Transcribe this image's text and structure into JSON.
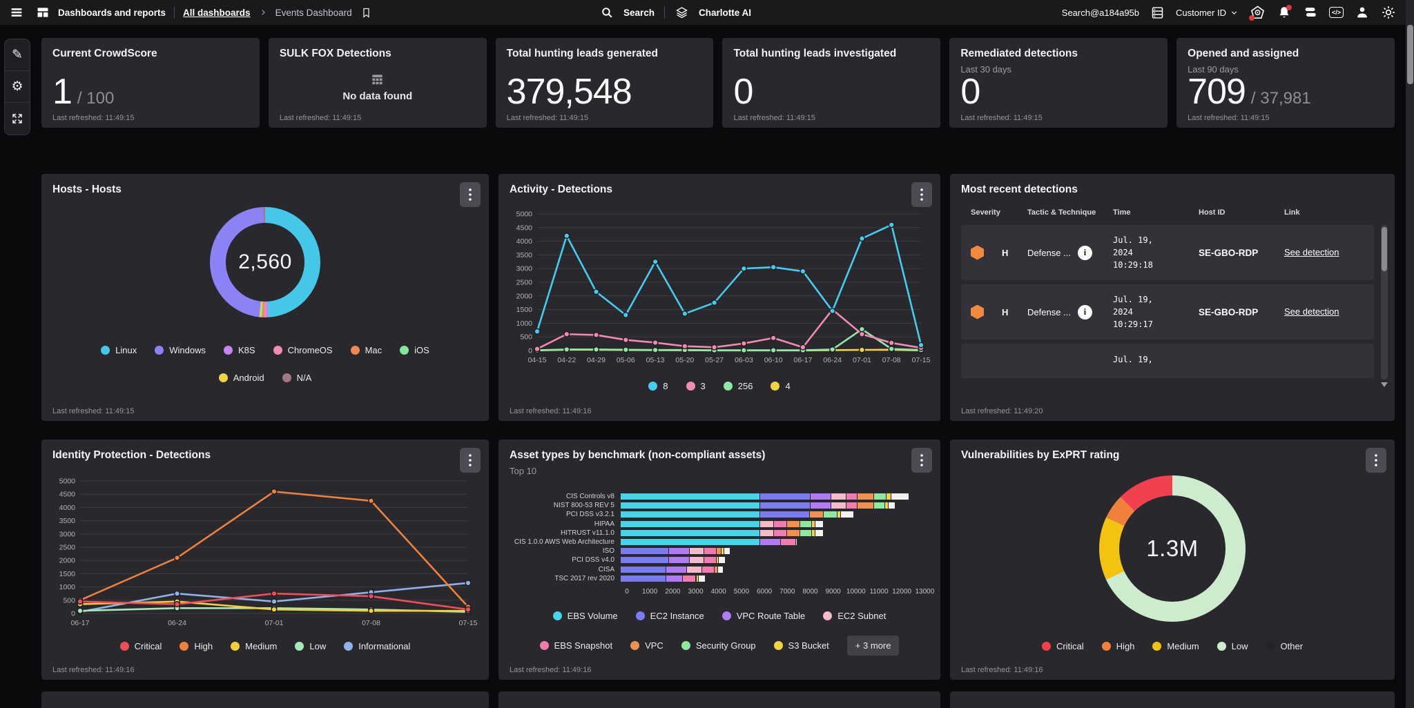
{
  "icons": {
    "pencil": "✎",
    "gear": "⚙",
    "info": "i",
    "code_glyph": "</>",
    "severity_letter": "H"
  },
  "topbar": {
    "nav_title": "Dashboards and reports",
    "breadcrumb_parent": "All dashboards",
    "breadcrumb_current": "Events Dashboard",
    "search_label": "Search",
    "charlotte_label": "Charlotte AI",
    "account_label": "Search@a184a95b",
    "customer_label": "Customer ID"
  },
  "stat_cards": [
    {
      "title": "Current CrowdScore",
      "value": "1",
      "suffix": "/ 100",
      "refreshed": "Last refreshed: 11:49:15"
    },
    {
      "title": "SULK FOX Detections",
      "empty_text": "No data found",
      "refreshed": "Last refreshed: 11:49:15"
    },
    {
      "title": "Total hunting leads generated",
      "value": "379,548",
      "refreshed": "Last refreshed: 11:49:15"
    },
    {
      "title": "Total hunting leads investigated",
      "value": "0",
      "refreshed": "Last refreshed: 11:49:15"
    },
    {
      "title": "Remediated detections",
      "subtitle": "Last 30 days",
      "value": "0",
      "refreshed": "Last refreshed: 11:49:15"
    },
    {
      "title": "Opened and assigned",
      "subtitle": "Last 90 days",
      "value": "709",
      "suffix": "/ 37,981",
      "refreshed": "Last refreshed: 11:49:15"
    }
  ],
  "hosts": {
    "title": "Hosts - Hosts",
    "center_value": "2,560",
    "refreshed": "Last refreshed: 11:49:15",
    "chart_data": {
      "type": "donut",
      "total": "2,560",
      "segments": [
        {
          "label": "Linux",
          "color": "#45c8e8",
          "pct": 49.0
        },
        {
          "label": "K8S",
          "color": "#c584f0",
          "pct": 0.8
        },
        {
          "label": "ChromeOS",
          "color": "#f08cb8",
          "pct": 0.4
        },
        {
          "label": "Mac",
          "color": "#f0884f",
          "pct": 0.7
        },
        {
          "label": "iOS",
          "color": "#7fe89c",
          "pct": 0.4
        },
        {
          "label": "Android",
          "color": "#f0d447",
          "pct": 0.4
        },
        {
          "label": "Windows",
          "color": "#8b82f5",
          "pct": 47.8
        },
        {
          "label": "N/A",
          "color": "#a5787f",
          "pct": 0.5
        }
      ],
      "legend_row1": [
        {
          "label": "Linux",
          "color": "#45c8e8"
        },
        {
          "label": "Windows",
          "color": "#8b82f5"
        },
        {
          "label": "K8S",
          "color": "#c584f0"
        },
        {
          "label": "ChromeOS",
          "color": "#f08cb8"
        },
        {
          "label": "Mac",
          "color": "#f0884f"
        },
        {
          "label": "iOS",
          "color": "#7fe89c"
        }
      ],
      "legend_row2": [
        {
          "label": "Android",
          "color": "#f0d447"
        },
        {
          "label": "N/A",
          "color": "#a5787f"
        }
      ]
    }
  },
  "activity": {
    "title": "Activity - Detections",
    "refreshed": "Last refreshed: 11:49:16",
    "chart_data": {
      "type": "line",
      "x": [
        "04-15",
        "04-22",
        "04-29",
        "05-06",
        "05-13",
        "05-20",
        "05-27",
        "06-03",
        "06-10",
        "06-17",
        "06-24",
        "07-01",
        "07-08",
        "07-15"
      ],
      "ylim": [
        0,
        5000
      ],
      "ystep": 500,
      "series": [
        {
          "name": "8",
          "color": "#45ccf0",
          "values": [
            700,
            4200,
            2150,
            1300,
            3250,
            1350,
            1750,
            3000,
            3050,
            2900,
            1450,
            4100,
            4600,
            200
          ]
        },
        {
          "name": "3",
          "color": "#f28ab4",
          "values": [
            60,
            600,
            570,
            390,
            290,
            160,
            120,
            260,
            460,
            120,
            1500,
            600,
            280,
            100
          ]
        },
        {
          "name": "256",
          "color": "#8fe8a8",
          "values": [
            10,
            40,
            40,
            30,
            20,
            20,
            10,
            10,
            10,
            10,
            40,
            780,
            60,
            20
          ]
        },
        {
          "name": "4",
          "color": "#f2d442",
          "values": [
            5,
            30,
            30,
            20,
            15,
            10,
            5,
            5,
            5,
            5,
            15,
            25,
            30,
            5
          ]
        }
      ]
    }
  },
  "detections": {
    "title": "Most recent detections",
    "columns": [
      "Severity",
      "Tactic & Technique",
      "Time",
      "Host ID",
      "Link"
    ],
    "rows": [
      {
        "severity": "H",
        "tactic": "Defense ...",
        "time_lines": [
          "Jul. 19,",
          "2024",
          "10:29:18"
        ],
        "host": "SE-GBO-RDP",
        "link": "See detection"
      },
      {
        "severity": "H",
        "tactic": "Defense ...",
        "time_lines": [
          "Jul. 19,",
          "2024",
          "10:29:17"
        ],
        "host": "SE-GBO-RDP",
        "link": "See detection"
      },
      {
        "severity": "",
        "tactic": "",
        "time_lines": [
          "Jul. 19,"
        ],
        "host": "",
        "link": "",
        "partial": true
      }
    ],
    "refreshed": "Last refreshed: 11:49:20"
  },
  "identity": {
    "title": "Identity Protection - Detections",
    "refreshed": "Last refreshed: 11:49:16",
    "chart_data": {
      "type": "line",
      "x": [
        "06-17",
        "06-24",
        "07-01",
        "07-08",
        "07-15"
      ],
      "ylim": [
        0,
        5000
      ],
      "ystep": 500,
      "series": [
        {
          "name": "Critical",
          "color": "#f24e58",
          "values": [
            450,
            350,
            750,
            650,
            150
          ]
        },
        {
          "name": "High",
          "color": "#f0813c",
          "values": [
            500,
            2100,
            4600,
            4250,
            250
          ]
        },
        {
          "name": "Medium",
          "color": "#f2ce3a",
          "values": [
            350,
            450,
            150,
            100,
            100
          ]
        },
        {
          "name": "Low",
          "color": "#a8e8b8",
          "values": [
            100,
            200,
            200,
            150,
            60
          ]
        },
        {
          "name": "Informational",
          "color": "#8fb2e8",
          "values": [
            60,
            750,
            450,
            800,
            1150
          ]
        }
      ]
    }
  },
  "assets": {
    "title": "Asset types by benchmark (non-compliant assets)",
    "subtitle": "Top 10",
    "more_label": "+ 3 more",
    "refreshed": "Last refreshed: 11:49:16",
    "chart_data": {
      "type": "stacked-bar-horizontal",
      "categories": [
        "CIS Controls v8",
        "NIST 800-53 REV 5",
        "PCI DSS v3.2.1",
        "HIPAA",
        "HITRUST v11.1.0",
        "CIS 1.0.0 AWS Web Architecture",
        "ISO",
        "PCI DSS v4.0",
        "CISA",
        "TSC 2017 rev 2020"
      ],
      "xlim": [
        0,
        13000
      ],
      "xstep": 1000,
      "series": [
        {
          "name": "EBS Volume",
          "color": "#45d4e8",
          "values": [
            6100,
            6100,
            6100,
            6100,
            6100,
            6100,
            0,
            0,
            0,
            0
          ]
        },
        {
          "name": "EC2 Instance",
          "color": "#7b7bf2",
          "values": [
            2200,
            2200,
            2150,
            0,
            0,
            0,
            2100,
            2100,
            2000,
            2000
          ]
        },
        {
          "name": "VPC Route Table",
          "color": "#b07bf5",
          "values": [
            900,
            900,
            0,
            0,
            0,
            900,
            900,
            900,
            900,
            700
          ]
        },
        {
          "name": "EC2 Subnet",
          "color": "#f2bcc8",
          "values": [
            650,
            650,
            0,
            600,
            600,
            0,
            650,
            650,
            650,
            0
          ]
        },
        {
          "name": "EBS Snapshot",
          "color": "#f27bb0",
          "values": [
            500,
            500,
            0,
            550,
            550,
            650,
            550,
            550,
            550,
            600
          ]
        },
        {
          "name": "VPC",
          "color": "#f0914f",
          "values": [
            700,
            700,
            600,
            600,
            600,
            0,
            200,
            0,
            150,
            0
          ]
        },
        {
          "name": "Security Group",
          "color": "#8fe8a0",
          "values": [
            550,
            500,
            600,
            500,
            500,
            0,
            0,
            0,
            0,
            0
          ]
        },
        {
          "name": "S3 Bucket",
          "color": "#f2d442",
          "values": [
            200,
            150,
            150,
            150,
            150,
            0,
            120,
            80,
            0,
            120
          ]
        },
        {
          "name": "Other",
          "color": "#f2f2f2",
          "values": [
            800,
            300,
            600,
            350,
            350,
            30,
            280,
            300,
            250,
            280
          ]
        }
      ],
      "legend_row1": [
        "EBS Volume",
        "EC2 Instance",
        "VPC Route Table",
        "EC2 Subnet"
      ],
      "legend_row2": [
        "EBS Snapshot",
        "VPC",
        "Security Group",
        "S3 Bucket"
      ]
    }
  },
  "exprt": {
    "title": "Vulnerabilities by ExPRT rating",
    "center_value": "1.3M",
    "refreshed": "Last refreshed: 11:49:16",
    "chart_data": {
      "type": "donut",
      "total": "1.3M",
      "segments": [
        {
          "label": "Low",
          "color": "#cdeccd",
          "pct": 68.0
        },
        {
          "label": "Medium",
          "color": "#f2c411",
          "pct": 14.0
        },
        {
          "label": "High",
          "color": "#f0813c",
          "pct": 5.5
        },
        {
          "label": "Critical",
          "color": "#f2414e",
          "pct": 12.5
        }
      ],
      "legend": [
        {
          "label": "Critical",
          "color": "#f2414e"
        },
        {
          "label": "High",
          "color": "#f0813c"
        },
        {
          "label": "Medium",
          "color": "#f2c411"
        },
        {
          "label": "Low",
          "color": "#cdeccd"
        },
        {
          "label": "Other",
          "color": "#232327"
        }
      ]
    }
  }
}
